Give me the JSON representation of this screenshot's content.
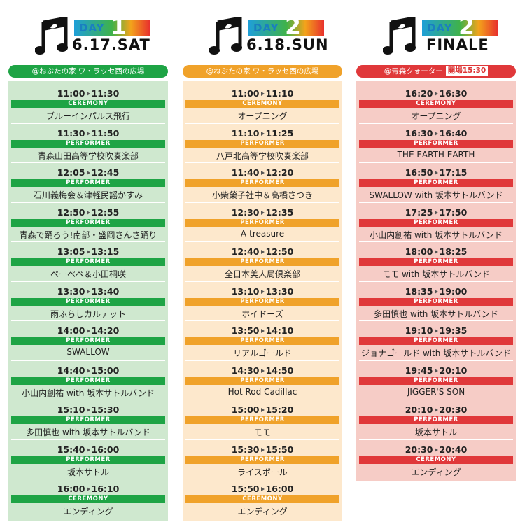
{
  "colors": {
    "green": "#1ea445",
    "green_light": "#cfe8cf",
    "orange": "#f0a22a",
    "orange_light": "#fde8cc",
    "red": "#e0383a",
    "red_light": "#f6ccc6"
  },
  "icons": [
    "music-note-icon"
  ],
  "columns": [
    {
      "day_label": "DAY",
      "day_number": "1",
      "date": "6.17.SAT",
      "venue": "@ねぶたの家 ワ・ラッセ西の広場",
      "open_label": "",
      "slots": [
        {
          "start": "11:00",
          "end": "11:30",
          "role": "CEREMONY",
          "name": "ブルーインパルス飛行"
        },
        {
          "start": "11:30",
          "end": "11:50",
          "role": "PERFORMER",
          "name": "青森山田高等学校吹奏楽部"
        },
        {
          "start": "12:05",
          "end": "12:45",
          "role": "PERFORMER",
          "name": "石川義梅会＆津軽民謡かすみ"
        },
        {
          "start": "12:50",
          "end": "12:55",
          "role": "PERFORMER",
          "name": "青森で踊ろう!南部・盛岡さんさ踊り"
        },
        {
          "start": "13:05",
          "end": "13:15",
          "role": "PERFORMER",
          "name": "ペーペペ＆小田桐咲"
        },
        {
          "start": "13:30",
          "end": "13:40",
          "role": "PERFORMER",
          "name": "雨ふらしカルテット"
        },
        {
          "start": "14:00",
          "end": "14:20",
          "role": "PERFORMER",
          "name": "SWALLOW"
        },
        {
          "start": "14:40",
          "end": "15:00",
          "role": "PERFORMER",
          "name": "小山内創祐 with 坂本サトルバンド"
        },
        {
          "start": "15:10",
          "end": "15:30",
          "role": "PERFORMER",
          "name": "多田慎也 with 坂本サトルバンド"
        },
        {
          "start": "15:40",
          "end": "16:00",
          "role": "PERFORMER",
          "name": "坂本サトル"
        },
        {
          "start": "16:00",
          "end": "16:10",
          "role": "CEREMONY",
          "name": "エンディング"
        }
      ]
    },
    {
      "day_label": "DAY",
      "day_number": "2",
      "date": "6.18.SUN",
      "venue": "@ねぶたの家 ワ・ラッセ西の広場",
      "open_label": "",
      "slots": [
        {
          "start": "11:00",
          "end": "11:10",
          "role": "CEREMONY",
          "name": "オープニング"
        },
        {
          "start": "11:10",
          "end": "11:25",
          "role": "PERFORMER",
          "name": "八戸北高等学校吹奏楽部"
        },
        {
          "start": "11:40",
          "end": "12:20",
          "role": "PERFORMER",
          "name": "小柴榮子社中＆高橋さつき"
        },
        {
          "start": "12:30",
          "end": "12:35",
          "role": "PERFORMER",
          "name": "A-treasure"
        },
        {
          "start": "12:40",
          "end": "12:50",
          "role": "PERFORMER",
          "name": "全日本美人局倶楽部"
        },
        {
          "start": "13:10",
          "end": "13:30",
          "role": "PERFORMER",
          "name": "ホイドーズ"
        },
        {
          "start": "13:50",
          "end": "14:10",
          "role": "PERFORMER",
          "name": "リアルゴールド"
        },
        {
          "start": "14:30",
          "end": "14:50",
          "role": "PERFORMER",
          "name": "Hot Rod Cadillac"
        },
        {
          "start": "15:00",
          "end": "15:20",
          "role": "PERFORMER",
          "name": "モモ"
        },
        {
          "start": "15:30",
          "end": "15:50",
          "role": "PERFORMER",
          "name": "ライスボール"
        },
        {
          "start": "15:50",
          "end": "16:00",
          "role": "CEREMONY",
          "name": "エンディング"
        }
      ]
    },
    {
      "day_label": "DAY",
      "day_number": "2",
      "date": "FINALE",
      "venue": "@青森クォーター",
      "open_label": "開場15:30",
      "slots": [
        {
          "start": "16:20",
          "end": "16:30",
          "role": "CEREMONY",
          "name": "オープニング"
        },
        {
          "start": "16:30",
          "end": "16:40",
          "role": "PERFORMER",
          "name": "THE EARTH EARTH"
        },
        {
          "start": "16:50",
          "end": "17:15",
          "role": "PERFORMER",
          "name": "SWALLOW with 坂本サトルバンド"
        },
        {
          "start": "17:25",
          "end": "17:50",
          "role": "PERFORMER",
          "name": "小山内創祐 with 坂本サトルバンド"
        },
        {
          "start": "18:00",
          "end": "18:25",
          "role": "PERFORMER",
          "name": "モモ with 坂本サトルバンド"
        },
        {
          "start": "18:35",
          "end": "19:00",
          "role": "PERFORMER",
          "name": "多田慎也 with 坂本サトルバンド"
        },
        {
          "start": "19:10",
          "end": "19:35",
          "role": "PERFORMER",
          "name": "ジョナゴールド with 坂本サトルバンド"
        },
        {
          "start": "19:45",
          "end": "20:10",
          "role": "PERFORMER",
          "name": "JIGGER'S SON"
        },
        {
          "start": "20:10",
          "end": "20:30",
          "role": "PERFORMER",
          "name": "坂本サトル"
        },
        {
          "start": "20:30",
          "end": "20:40",
          "role": "CEREMONY",
          "name": "エンディング"
        }
      ]
    }
  ]
}
